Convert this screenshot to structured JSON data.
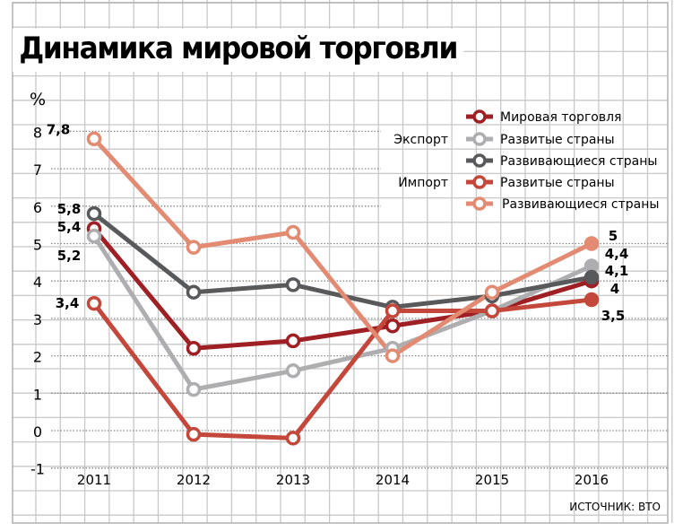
{
  "title": "Динамика мировой торговли",
  "source": "ИСТОЧНИК: ВТО",
  "chart_data": {
    "type": "line",
    "title": "Динамика мировой торговли",
    "ylabel": "%",
    "ylim": [
      -1,
      8
    ],
    "yticks": [
      "-1",
      "0",
      "1",
      "2",
      "3",
      "4",
      "5",
      "6",
      "7",
      "8"
    ],
    "categories": [
      "2011",
      "2012",
      "2013",
      "2014",
      "2015",
      "2016"
    ],
    "group_labels": {
      "export": "Экспорт",
      "import": "Импорт"
    },
    "series": [
      {
        "name": "Мировая торговля",
        "group": "",
        "color": "#9e1f24",
        "values": [
          5.4,
          2.2,
          2.4,
          2.8,
          3.2,
          4.0
        ],
        "labels": {
          "first": "5,4",
          "last": "4"
        }
      },
      {
        "name": "Развитые страны",
        "group": "export",
        "color": "#aeaeb0",
        "values": [
          5.2,
          1.1,
          1.6,
          2.2,
          3.2,
          4.4
        ],
        "labels": {
          "first": "5,2",
          "last": "4,4"
        }
      },
      {
        "name": "Развивающиеся страны",
        "group": "export",
        "color": "#58595b",
        "values": [
          5.8,
          3.7,
          3.9,
          3.3,
          3.6,
          4.1
        ],
        "labels": {
          "first": "5,8",
          "last": "4,1"
        }
      },
      {
        "name": "Развитые страны",
        "group": "import",
        "color": "#c4473b",
        "values": [
          3.4,
          -0.1,
          -0.2,
          3.2,
          3.2,
          3.5
        ],
        "labels": {
          "first": "3,4",
          "last": "3,5"
        }
      },
      {
        "name": "Развивающиеся страны",
        "group": "import",
        "color": "#e38a72",
        "values": [
          7.8,
          4.9,
          5.3,
          2.0,
          3.7,
          5.0
        ],
        "labels": {
          "first": "7,8",
          "last": "5"
        }
      }
    ],
    "last_point_filled": true,
    "grid": true,
    "legend": "top-right"
  }
}
